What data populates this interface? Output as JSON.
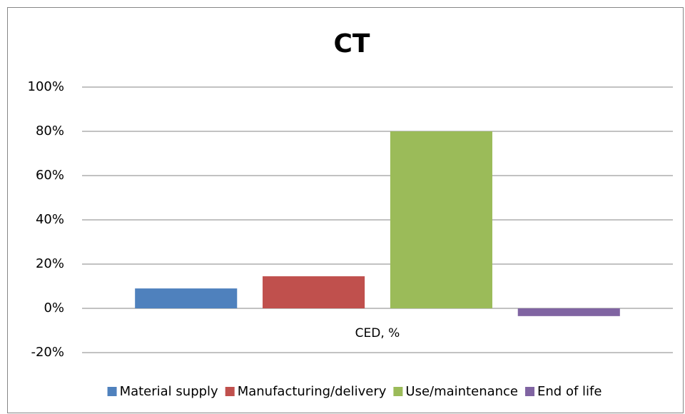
{
  "chart_data": {
    "type": "bar",
    "title": "CT",
    "categories": [
      "CED, %"
    ],
    "series": [
      {
        "name": "Material supply",
        "color": "#4f81bd",
        "values": [
          9
        ]
      },
      {
        "name": "Manufacturing/delivery",
        "color": "#c0504d",
        "values": [
          14.5
        ]
      },
      {
        "name": "Use/maintenance",
        "color": "#9bbb59",
        "values": [
          80
        ]
      },
      {
        "name": "End of life",
        "color": "#8064a2",
        "values": [
          -3.5
        ]
      }
    ],
    "ylim": [
      -20,
      100
    ],
    "yticks": [
      {
        "value": -20,
        "label": "-20%"
      },
      {
        "value": 0,
        "label": "0%"
      },
      {
        "value": 20,
        "label": "20%"
      },
      {
        "value": 40,
        "label": "40%"
      },
      {
        "value": 60,
        "label": "60%"
      },
      {
        "value": 80,
        "label": "80%"
      },
      {
        "value": 100,
        "label": "100%"
      }
    ],
    "grid": true,
    "legend": "bottom"
  }
}
